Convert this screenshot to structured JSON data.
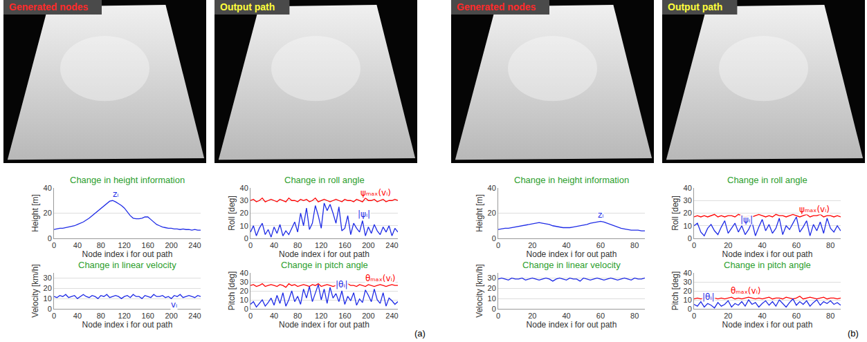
{
  "panels": [
    {
      "label": "(a)",
      "images": [
        "Generated nodes",
        "Output path"
      ]
    },
    {
      "label": "(b)",
      "images": [
        "Generated nodes",
        "Output path"
      ]
    }
  ],
  "chart_data": [
    {
      "type": "line",
      "title": "Change in height information",
      "x_label": "Node index i for out path",
      "y_label": "Height [m]",
      "grid": true,
      "xlim": [
        0,
        250
      ],
      "xticks": [
        0,
        40,
        80,
        120,
        160,
        200,
        240
      ],
      "ylim": [
        0,
        40
      ],
      "yticks": [
        0,
        20,
        40
      ],
      "x": [
        0,
        5,
        10,
        15,
        20,
        25,
        30,
        35,
        40,
        45,
        50,
        55,
        60,
        65,
        70,
        75,
        80,
        85,
        90,
        95,
        100,
        105,
        110,
        115,
        120,
        125,
        130,
        135,
        140,
        145,
        150,
        155,
        160,
        165,
        170,
        175,
        180,
        185,
        190,
        195,
        200,
        205,
        210,
        215,
        220,
        225,
        230,
        235,
        240,
        245,
        250
      ],
      "series": [
        {
          "name": "zᵢ",
          "color": "#1e2be6",
          "values": [
            7,
            7.5,
            8,
            8,
            8.5,
            9,
            9.5,
            10,
            11,
            12,
            13,
            14.5,
            16,
            18,
            20,
            22,
            24,
            26,
            28,
            29.5,
            30,
            29,
            27.5,
            26,
            24,
            21,
            18,
            16,
            15.5,
            15.5,
            16,
            17,
            17,
            15,
            13,
            11,
            10,
            9,
            8.5,
            8,
            8,
            7.5,
            7.5,
            7,
            7.5,
            7,
            7,
            6.5,
            7,
            6.5,
            6.5
          ]
        }
      ]
    },
    {
      "type": "line",
      "title": "Change in roll angle",
      "x_label": "Node index i for out path",
      "y_label": "Roll [deg]",
      "grid": true,
      "xlim": [
        0,
        250
      ],
      "xticks": [
        0,
        40,
        80,
        120,
        160,
        200,
        240
      ],
      "ylim": [
        0,
        40
      ],
      "yticks": [
        0,
        10,
        20,
        30,
        40
      ],
      "x": [
        0,
        5,
        10,
        15,
        20,
        25,
        30,
        35,
        40,
        45,
        50,
        55,
        60,
        65,
        70,
        75,
        80,
        85,
        90,
        95,
        100,
        105,
        110,
        115,
        120,
        125,
        130,
        135,
        140,
        145,
        150,
        155,
        160,
        165,
        170,
        175,
        180,
        185,
        190,
        195,
        200,
        205,
        210,
        215,
        220,
        225,
        230,
        235,
        240,
        245,
        250
      ],
      "series": [
        {
          "name": "ψₘₐₓ(vᵢ)",
          "color": "#ff0000",
          "values": [
            30,
            31,
            29,
            30,
            32,
            29,
            30,
            31,
            30,
            29,
            31,
            30,
            29,
            32,
            30,
            30,
            29,
            31,
            30,
            31,
            29,
            30,
            32,
            29,
            30,
            31,
            30,
            29,
            30,
            31,
            30,
            29,
            31,
            30,
            30,
            29,
            31,
            30,
            29,
            32,
            30,
            30,
            31,
            29,
            30,
            31,
            29,
            30,
            30,
            31,
            30
          ]
        },
        {
          "name": "|ψᵢ|",
          "color": "#1e2be6",
          "values": [
            5,
            10,
            2,
            8,
            12,
            3,
            7,
            1,
            9,
            4,
            11,
            2,
            6,
            3,
            8,
            13,
            5,
            20,
            10,
            24,
            7,
            12,
            26,
            18,
            8,
            28,
            22,
            27,
            20,
            12,
            25,
            6,
            8,
            18,
            3,
            12,
            8,
            5,
            14,
            2,
            9,
            4,
            11,
            6,
            3,
            9,
            5,
            10,
            2,
            8,
            5
          ]
        }
      ]
    },
    {
      "type": "line",
      "title": "Change in linear velocity",
      "x_label": "Node index i for out path",
      "y_label": "Velocity [km/h]",
      "grid": true,
      "xlim": [
        0,
        250
      ],
      "xticks": [
        0,
        40,
        80,
        120,
        160,
        200,
        240
      ],
      "ylim": [
        0,
        35
      ],
      "yticks": [
        0,
        10,
        20,
        30
      ],
      "x": [
        0,
        5,
        10,
        15,
        20,
        25,
        30,
        35,
        40,
        45,
        50,
        55,
        60,
        65,
        70,
        75,
        80,
        85,
        90,
        95,
        100,
        105,
        110,
        115,
        120,
        125,
        130,
        135,
        140,
        145,
        150,
        155,
        160,
        165,
        170,
        175,
        180,
        185,
        190,
        195,
        200,
        205,
        210,
        215,
        220,
        225,
        230,
        235,
        240,
        245,
        250
      ],
      "series": [
        {
          "name": "vᵢ",
          "color": "#1e2be6",
          "values": [
            12,
            11,
            13,
            12,
            14,
            11,
            12,
            13,
            10,
            12,
            14,
            12,
            11,
            13,
            12,
            10,
            13,
            12,
            14,
            11,
            12,
            13,
            12,
            10,
            12,
            13,
            11,
            14,
            12,
            12,
            10,
            13,
            12,
            11,
            14,
            12,
            12,
            13,
            11,
            12,
            10,
            13,
            12,
            14,
            11,
            12,
            13,
            12,
            11,
            13,
            12
          ]
        }
      ]
    },
    {
      "type": "line",
      "title": "Change in pitch angle",
      "x_label": "Node index i for out path",
      "y_label": "Pitch [deg]",
      "grid": true,
      "xlim": [
        0,
        250
      ],
      "xticks": [
        0,
        40,
        80,
        120,
        160,
        200,
        240
      ],
      "ylim": [
        0,
        40
      ],
      "yticks": [
        0,
        10,
        20,
        30,
        40
      ],
      "x": [
        0,
        5,
        10,
        15,
        20,
        25,
        30,
        35,
        40,
        45,
        50,
        55,
        60,
        65,
        70,
        75,
        80,
        85,
        90,
        95,
        100,
        105,
        110,
        115,
        120,
        125,
        130,
        135,
        140,
        145,
        150,
        155,
        160,
        165,
        170,
        175,
        180,
        185,
        190,
        195,
        200,
        205,
        210,
        215,
        220,
        225,
        230,
        235,
        240,
        245,
        250
      ],
      "series": [
        {
          "name": "θₘₐₓ(vᵢ)",
          "color": "#ff0000",
          "values": [
            26,
            27,
            25,
            26,
            28,
            25,
            26,
            27,
            26,
            25,
            27,
            26,
            24,
            28,
            26,
            27,
            25,
            26,
            27,
            26,
            25,
            27,
            26,
            28,
            25,
            26,
            27,
            26,
            25,
            26,
            27,
            26,
            25,
            28,
            26,
            26,
            25,
            27,
            26,
            25,
            27,
            26,
            25,
            26,
            27,
            26,
            25,
            26,
            27,
            26,
            26
          ]
        },
        {
          "name": "|θᵢ|",
          "color": "#1e2be6",
          "values": [
            5,
            8,
            2,
            6,
            10,
            3,
            7,
            12,
            4,
            15,
            6,
            18,
            3,
            10,
            20,
            8,
            14,
            5,
            22,
            12,
            25,
            8,
            18,
            27,
            10,
            22,
            6,
            24,
            12,
            17,
            8,
            20,
            5,
            14,
            9,
            18,
            4,
            11,
            7,
            21,
            15,
            8,
            22,
            10,
            6,
            18,
            3,
            12,
            9,
            5,
            8
          ]
        }
      ]
    },
    {
      "type": "line",
      "title": "Change in height information",
      "x_label": "Node index i for out path",
      "y_label": "Height [m]",
      "grid": true,
      "xlim": [
        0,
        86
      ],
      "xticks": [
        0,
        20,
        40,
        60,
        80
      ],
      "ylim": [
        0,
        40
      ],
      "yticks": [
        0,
        20,
        40
      ],
      "x": [
        0,
        2,
        4,
        6,
        8,
        10,
        12,
        14,
        16,
        18,
        20,
        22,
        24,
        26,
        28,
        30,
        32,
        34,
        36,
        38,
        40,
        42,
        44,
        46,
        48,
        50,
        52,
        54,
        56,
        58,
        60,
        62,
        64,
        66,
        68,
        70,
        72,
        74,
        76,
        78,
        80,
        82,
        84,
        86
      ],
      "series": [
        {
          "name": "zᵢ",
          "color": "#1e2be6",
          "values": [
            7,
            7.5,
            8,
            8,
            8.5,
            9,
            9.5,
            10,
            10.5,
            11,
            11.5,
            12,
            12.5,
            12,
            11.5,
            11,
            10,
            9.5,
            9,
            8.5,
            8.5,
            8.5,
            9,
            9.5,
            10,
            10.5,
            11,
            12,
            12.5,
            13,
            13.5,
            13,
            12,
            11,
            10,
            9,
            8,
            7.5,
            7,
            6.5,
            6.5,
            6.5,
            6,
            6
          ]
        }
      ]
    },
    {
      "type": "line",
      "title": "Change in roll angle",
      "x_label": "Node index i for out path",
      "y_label": "Roll [deg]",
      "grid": true,
      "xlim": [
        0,
        86
      ],
      "xticks": [
        0,
        20,
        40,
        60,
        80
      ],
      "ylim": [
        0,
        40
      ],
      "yticks": [
        0,
        10,
        20,
        30,
        40
      ],
      "x": [
        0,
        2,
        4,
        6,
        8,
        10,
        12,
        14,
        16,
        18,
        20,
        22,
        24,
        26,
        28,
        30,
        32,
        34,
        36,
        38,
        40,
        42,
        44,
        46,
        48,
        50,
        52,
        54,
        56,
        58,
        60,
        62,
        64,
        66,
        68,
        70,
        72,
        74,
        76,
        78,
        80,
        82,
        84,
        86
      ],
      "series": [
        {
          "name": "ψₘₐₓ(vᵢ)",
          "color": "#ff0000",
          "values": [
            17,
            18,
            17,
            18,
            17,
            18,
            19,
            17,
            18,
            17,
            18,
            18,
            17,
            19,
            18,
            17,
            18,
            17,
            18,
            19,
            18,
            17,
            18,
            17,
            19,
            18,
            18,
            17,
            18,
            19,
            18,
            17,
            18,
            19,
            17,
            18,
            18,
            19,
            17,
            18,
            18,
            17,
            18,
            17
          ]
        },
        {
          "name": "|ψᵢ|",
          "color": "#1e2be6",
          "values": [
            10,
            12,
            5,
            2,
            8,
            11,
            6,
            3,
            9,
            14,
            4,
            8,
            12,
            5,
            10,
            3,
            7,
            13,
            2,
            9,
            15,
            6,
            11,
            4,
            8,
            16,
            3,
            10,
            7,
            12,
            17,
            5,
            9,
            14,
            2,
            11,
            6,
            13,
            4,
            16,
            8,
            5,
            10,
            6
          ]
        }
      ]
    },
    {
      "type": "line",
      "title": "Change in linear velocity",
      "x_label": "Node index i for out path",
      "y_label": "Velocity [km/h]",
      "grid": true,
      "xlim": [
        0,
        86
      ],
      "xticks": [
        0,
        20,
        40,
        60,
        80
      ],
      "ylim": [
        0,
        35
      ],
      "yticks": [
        0,
        10,
        20,
        30
      ],
      "x": [
        0,
        2,
        4,
        6,
        8,
        10,
        12,
        14,
        16,
        18,
        20,
        22,
        24,
        26,
        28,
        30,
        32,
        34,
        36,
        38,
        40,
        42,
        44,
        46,
        48,
        50,
        52,
        54,
        56,
        58,
        60,
        62,
        64,
        66,
        68,
        70,
        72,
        74,
        76,
        78,
        80,
        82,
        84,
        86
      ],
      "series": [
        {
          "color": "#1e2be6",
          "values": [
            29,
            30,
            29,
            28,
            30,
            29,
            29,
            30,
            28,
            29,
            30,
            29,
            28,
            29,
            30,
            29,
            27,
            29,
            30,
            29,
            28,
            30,
            29,
            29,
            27,
            30,
            29,
            28,
            29,
            30,
            29,
            28,
            29,
            30,
            29,
            28,
            29,
            30,
            29,
            28,
            30,
            29,
            29,
            30
          ]
        }
      ]
    },
    {
      "type": "line",
      "title": "Change in pitch angle",
      "x_label": "Node index i for out path",
      "y_label": "Pitch [deg]",
      "grid": true,
      "xlim": [
        0,
        86
      ],
      "xticks": [
        0,
        20,
        40,
        60,
        80
      ],
      "ylim": [
        0,
        40
      ],
      "yticks": [
        0,
        10,
        20,
        30,
        40
      ],
      "x": [
        0,
        2,
        4,
        6,
        8,
        10,
        12,
        14,
        16,
        18,
        20,
        22,
        24,
        26,
        28,
        30,
        32,
        34,
        36,
        38,
        40,
        42,
        44,
        46,
        48,
        50,
        52,
        54,
        56,
        58,
        60,
        62,
        64,
        66,
        68,
        70,
        72,
        74,
        76,
        78,
        80,
        82,
        84,
        86
      ],
      "series": [
        {
          "name": "θₘₐₓ(vᵢ)",
          "color": "#ff0000",
          "values": [
            11,
            12,
            11,
            12,
            13,
            11,
            12,
            11,
            12,
            11,
            12,
            13,
            11,
            12,
            11,
            12,
            13,
            12,
            11,
            12,
            11,
            12,
            13,
            11,
            12,
            12,
            11,
            13,
            12,
            11,
            12,
            14,
            11,
            12,
            13,
            12,
            11,
            12,
            13,
            11,
            12,
            12,
            11,
            12
          ]
        },
        {
          "name": "|θᵢ|",
          "color": "#1e2be6",
          "values": [
            5,
            3,
            8,
            2,
            6,
            4,
            1,
            7,
            3,
            5,
            9,
            2,
            6,
            4,
            8,
            3,
            10,
            5,
            7,
            2,
            6,
            9,
            4,
            8,
            3,
            10,
            6,
            2,
            7,
            11,
            4,
            8,
            5,
            9,
            3,
            7,
            10,
            4,
            8,
            6,
            9,
            5,
            7,
            4
          ]
        }
      ]
    }
  ]
}
